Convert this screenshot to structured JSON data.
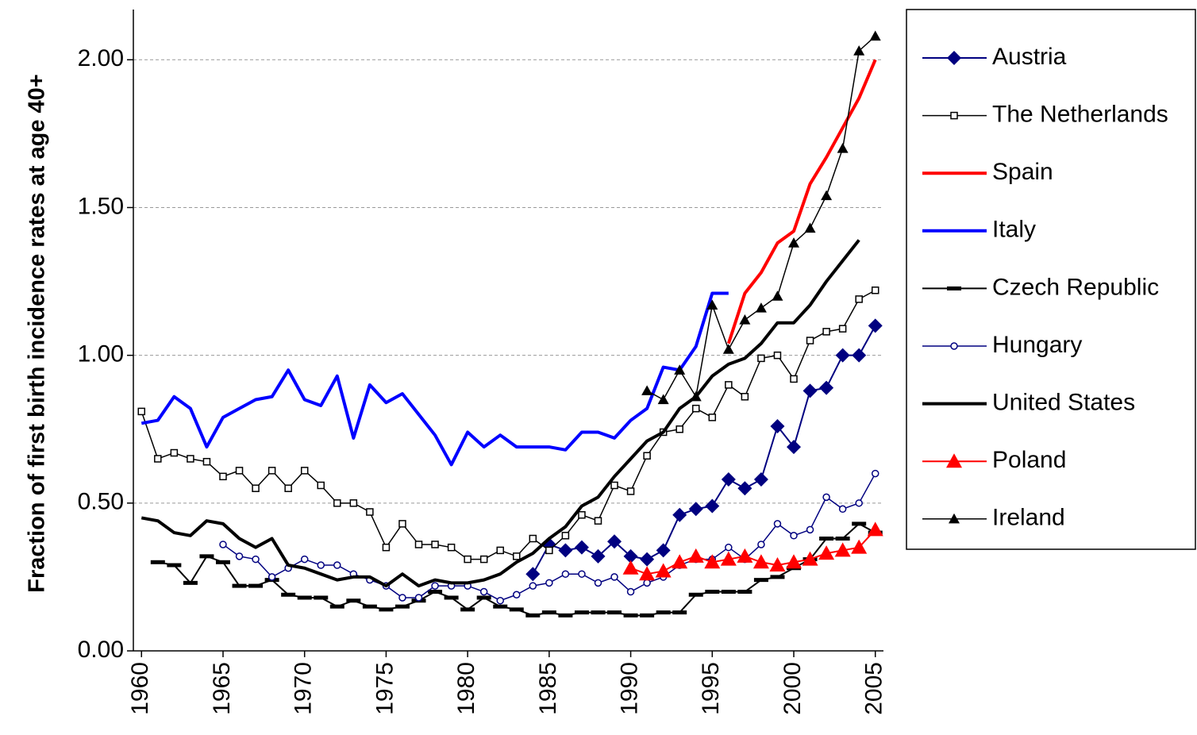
{
  "chart_data": {
    "type": "line",
    "y_label": "Fraction of first birth incidence rates at age 40+",
    "x": [
      1960,
      1961,
      1962,
      1963,
      1964,
      1965,
      1966,
      1967,
      1968,
      1969,
      1970,
      1971,
      1972,
      1973,
      1974,
      1975,
      1976,
      1977,
      1978,
      1979,
      1980,
      1981,
      1982,
      1983,
      1984,
      1985,
      1986,
      1987,
      1988,
      1989,
      1990,
      1991,
      1992,
      1993,
      1994,
      1995,
      1996,
      1997,
      1998,
      1999,
      2000,
      2001,
      2002,
      2003,
      2004,
      2005
    ],
    "xlim": [
      1959.5,
      2005.5
    ],
    "xticks": [
      1960,
      1965,
      1970,
      1975,
      1980,
      1985,
      1990,
      1995,
      2000,
      2005
    ],
    "ylim": [
      0,
      2.17
    ],
    "yticks": [
      {
        "value": 0,
        "label": "0.00"
      },
      {
        "value": 0.5,
        "label": "0.50"
      },
      {
        "value": 1,
        "label": "1.00"
      },
      {
        "value": 1.5,
        "label": "1.50"
      },
      {
        "value": 2,
        "label": "2.00"
      }
    ],
    "grid": true,
    "legend": "right",
    "series": [
      {
        "name": "Austria",
        "color": "#000080",
        "marker": "diamond",
        "width": 2,
        "values": [
          null,
          null,
          null,
          null,
          null,
          null,
          null,
          null,
          null,
          null,
          null,
          null,
          null,
          null,
          null,
          null,
          null,
          null,
          null,
          null,
          null,
          null,
          null,
          null,
          0.26,
          0.36,
          0.34,
          0.35,
          0.32,
          0.37,
          0.32,
          0.31,
          0.34,
          0.46,
          0.48,
          0.49,
          0.58,
          0.55,
          0.58,
          0.76,
          0.69,
          0.88,
          0.89,
          1.0,
          1.0,
          1.1
        ]
      },
      {
        "name": "The Netherlands",
        "color": "#000000",
        "marker": "square",
        "width": 1.5,
        "values": [
          0.81,
          0.65,
          0.67,
          0.65,
          0.64,
          0.59,
          0.61,
          0.55,
          0.61,
          0.55,
          0.61,
          0.56,
          0.5,
          0.5,
          0.47,
          0.35,
          0.43,
          0.36,
          0.36,
          0.35,
          0.31,
          0.31,
          0.34,
          0.32,
          0.38,
          0.34,
          0.39,
          0.46,
          0.44,
          0.56,
          0.54,
          0.66,
          0.74,
          0.75,
          0.82,
          0.79,
          0.9,
          0.86,
          0.99,
          1.0,
          0.92,
          1.05,
          1.08,
          1.09,
          1.19,
          1.22
        ]
      },
      {
        "name": "Spain",
        "color": "#ff0000",
        "marker": "none",
        "width": 4,
        "values": [
          null,
          null,
          null,
          null,
          null,
          null,
          null,
          null,
          null,
          null,
          null,
          null,
          null,
          null,
          null,
          null,
          null,
          null,
          null,
          null,
          null,
          null,
          null,
          null,
          null,
          null,
          null,
          null,
          null,
          null,
          null,
          null,
          null,
          null,
          null,
          null,
          1.04,
          1.21,
          1.28,
          1.38,
          1.42,
          1.58,
          1.67,
          1.77,
          1.87,
          2.0
        ]
      },
      {
        "name": "Italy",
        "color": "#0000ff",
        "marker": "none",
        "width": 4,
        "values": [
          0.77,
          0.78,
          0.86,
          0.82,
          0.69,
          0.79,
          0.82,
          0.85,
          0.86,
          0.95,
          0.85,
          0.83,
          0.93,
          0.72,
          0.9,
          0.84,
          0.87,
          0.8,
          0.73,
          0.63,
          0.74,
          0.69,
          0.73,
          0.69,
          0.69,
          0.69,
          0.68,
          0.74,
          0.74,
          0.72,
          0.78,
          0.82,
          0.96,
          0.95,
          1.03,
          1.21,
          1.21,
          null,
          null,
          null,
          null,
          null,
          null,
          null,
          null,
          null
        ]
      },
      {
        "name": "Czech Republic",
        "color": "#000000",
        "marker": "dash",
        "width": 2,
        "values": [
          null,
          0.3,
          0.29,
          0.23,
          0.32,
          0.3,
          0.22,
          0.22,
          0.24,
          0.19,
          0.18,
          0.18,
          0.15,
          0.17,
          0.15,
          0.14,
          0.15,
          0.17,
          0.2,
          0.18,
          0.14,
          0.18,
          0.15,
          0.14,
          0.12,
          0.13,
          0.12,
          0.13,
          0.13,
          0.13,
          0.12,
          0.12,
          0.13,
          0.13,
          0.19,
          0.2,
          0.2,
          0.2,
          0.24,
          0.25,
          0.28,
          0.31,
          0.38,
          0.38,
          0.43,
          0.4
        ]
      },
      {
        "name": "Hungary",
        "color": "#000080",
        "marker": "circle",
        "width": 1.5,
        "values": [
          null,
          null,
          null,
          null,
          null,
          0.36,
          0.32,
          0.31,
          0.25,
          0.28,
          0.31,
          0.29,
          0.29,
          0.26,
          0.24,
          0.22,
          0.18,
          0.18,
          0.22,
          0.22,
          0.22,
          0.2,
          0.17,
          0.19,
          0.22,
          0.23,
          0.26,
          0.26,
          0.23,
          0.25,
          0.2,
          0.23,
          0.25,
          0.29,
          0.31,
          0.31,
          0.35,
          0.31,
          0.36,
          0.43,
          0.39,
          0.41,
          0.52,
          0.48,
          0.5,
          0.6
        ]
      },
      {
        "name": "United States",
        "color": "#000000",
        "marker": "none",
        "width": 4,
        "values": [
          0.45,
          0.44,
          0.4,
          0.39,
          0.44,
          0.43,
          0.38,
          0.35,
          0.38,
          0.29,
          0.28,
          0.26,
          0.24,
          0.25,
          0.25,
          0.22,
          0.26,
          0.22,
          0.24,
          0.23,
          0.23,
          0.24,
          0.26,
          0.3,
          0.33,
          0.38,
          0.42,
          0.49,
          0.52,
          0.59,
          0.65,
          0.71,
          0.74,
          0.82,
          0.86,
          0.93,
          0.97,
          0.99,
          1.04,
          1.11,
          1.11,
          1.17,
          1.25,
          1.32,
          1.39,
          null
        ]
      },
      {
        "name": "Poland",
        "color": "#ff0000",
        "marker": "triangle",
        "width": 2,
        "values": [
          null,
          null,
          null,
          null,
          null,
          null,
          null,
          null,
          null,
          null,
          null,
          null,
          null,
          null,
          null,
          null,
          null,
          null,
          null,
          null,
          null,
          null,
          null,
          null,
          null,
          null,
          null,
          null,
          null,
          null,
          0.28,
          0.26,
          0.27,
          0.3,
          0.32,
          0.3,
          0.31,
          0.32,
          0.3,
          0.29,
          0.3,
          0.31,
          0.33,
          0.34,
          0.35,
          0.41
        ]
      },
      {
        "name": "Ireland",
        "color": "#000000",
        "marker": "triangle",
        "width": 1.5,
        "values": [
          null,
          null,
          null,
          null,
          null,
          null,
          null,
          null,
          null,
          null,
          null,
          null,
          null,
          null,
          null,
          null,
          null,
          null,
          null,
          null,
          null,
          null,
          null,
          null,
          null,
          null,
          null,
          null,
          null,
          null,
          null,
          0.88,
          0.85,
          0.95,
          0.86,
          1.17,
          1.02,
          1.12,
          1.16,
          1.2,
          1.38,
          1.43,
          1.54,
          1.7,
          2.03,
          2.08
        ]
      }
    ]
  }
}
